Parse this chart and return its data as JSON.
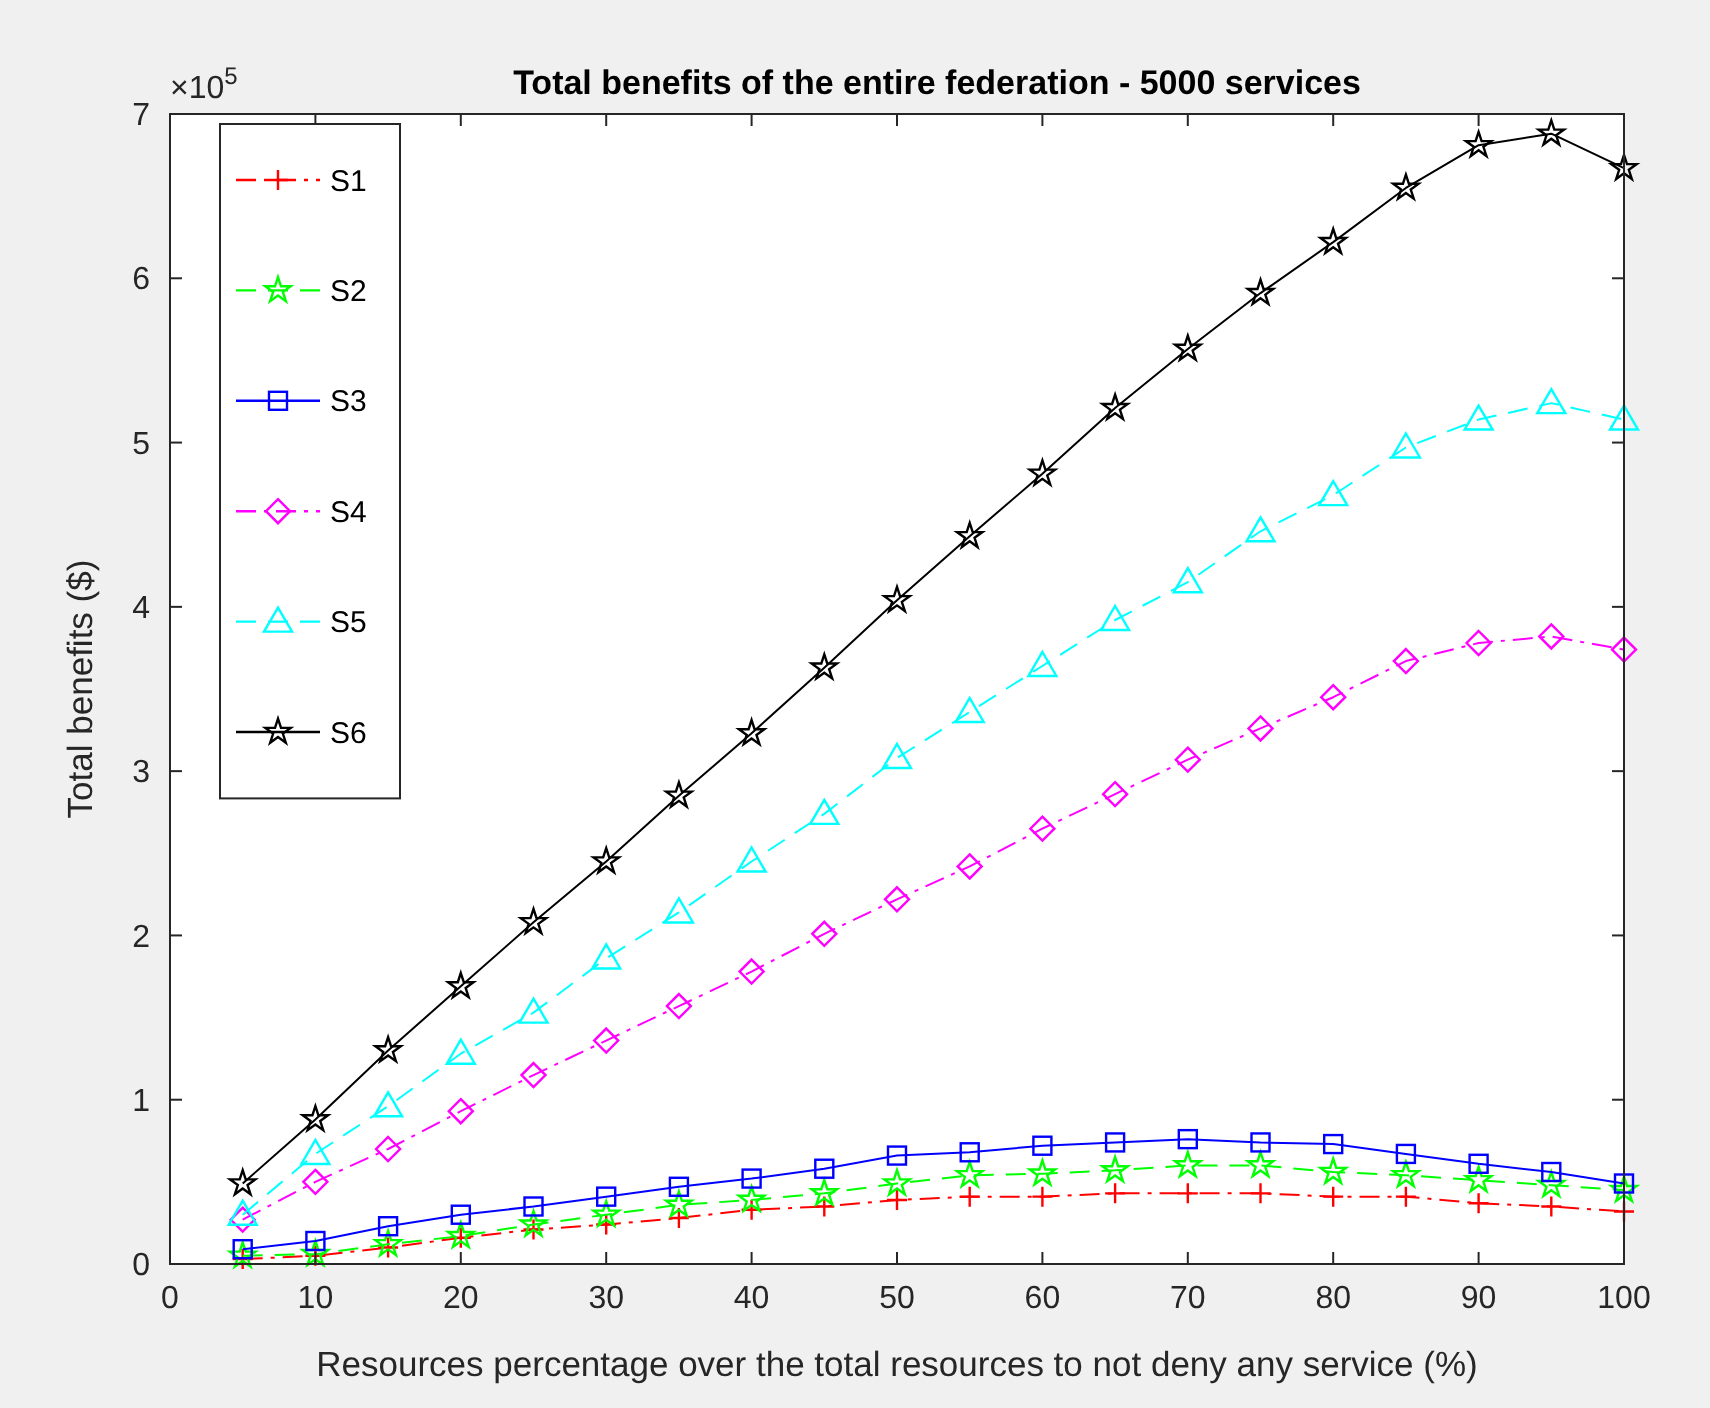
{
  "chart_data": {
    "type": "line",
    "title": "Total benefits of the entire federation - 5000 services",
    "xlabel": "Resources percentage over the total resources to not deny any service (%)",
    "ylabel": "Total benefits ($)",
    "annotations": [
      "×10$^{5}$"
    ],
    "x": [
      5,
      10,
      15,
      20,
      25,
      30,
      35,
      40,
      45,
      50,
      55,
      60,
      65,
      70,
      75,
      80,
      85,
      90,
      95,
      100
    ],
    "series": [
      {
        "name": "S1",
        "color": "#ff0000",
        "line_style": "dashdot",
        "marker": "cross",
        "values": [
          0.03,
          0.05,
          0.1,
          0.16,
          0.21,
          0.24,
          0.28,
          0.33,
          0.35,
          0.39,
          0.41,
          0.41,
          0.43,
          0.43,
          0.43,
          0.41,
          0.41,
          0.37,
          0.35,
          0.32
        ]
      },
      {
        "name": "S2",
        "color": "#00ff00",
        "line_style": "dashed",
        "marker": "star",
        "values": [
          0.05,
          0.06,
          0.12,
          0.17,
          0.24,
          0.3,
          0.36,
          0.39,
          0.43,
          0.49,
          0.54,
          0.55,
          0.57,
          0.6,
          0.6,
          0.56,
          0.54,
          0.51,
          0.48,
          0.45
        ]
      },
      {
        "name": "S3",
        "color": "#0000ff",
        "line_style": "solid",
        "marker": "square",
        "values": [
          0.09,
          0.14,
          0.23,
          0.3,
          0.35,
          0.41,
          0.47,
          0.52,
          0.58,
          0.66,
          0.68,
          0.72,
          0.74,
          0.76,
          0.74,
          0.73,
          0.67,
          0.61,
          0.56,
          0.49
        ]
      },
      {
        "name": "S4",
        "color": "#ff00ff",
        "line_style": "dashdot",
        "marker": "diamond",
        "values": [
          0.27,
          0.5,
          0.7,
          0.93,
          1.15,
          1.36,
          1.57,
          1.78,
          2.01,
          2.22,
          2.42,
          2.65,
          2.86,
          3.07,
          3.26,
          3.45,
          3.67,
          3.78,
          3.82,
          3.74
        ]
      },
      {
        "name": "S5",
        "color": "#00ffff",
        "line_style": "dashed",
        "marker": "triangle",
        "values": [
          0.3,
          0.67,
          0.96,
          1.28,
          1.53,
          1.86,
          2.14,
          2.45,
          2.74,
          3.08,
          3.36,
          3.64,
          3.92,
          4.15,
          4.46,
          4.68,
          4.97,
          5.14,
          5.24,
          5.14
        ]
      },
      {
        "name": "S6",
        "color": "#000000",
        "line_style": "solid",
        "marker": "star",
        "values": [
          0.49,
          0.88,
          1.3,
          1.69,
          2.08,
          2.45,
          2.85,
          3.23,
          3.63,
          4.04,
          4.43,
          4.81,
          5.21,
          5.57,
          5.91,
          6.22,
          6.55,
          6.81,
          6.88,
          6.67
        ]
      }
    ],
    "xlim": [
      0,
      100
    ],
    "xticks": [
      0,
      10,
      20,
      30,
      40,
      50,
      60,
      70,
      80,
      90,
      100
    ],
    "ylim": [
      0,
      7
    ],
    "yticks": [
      0,
      1,
      2,
      3,
      4,
      5,
      6,
      7
    ],
    "grid": false,
    "legend": "top left"
  }
}
